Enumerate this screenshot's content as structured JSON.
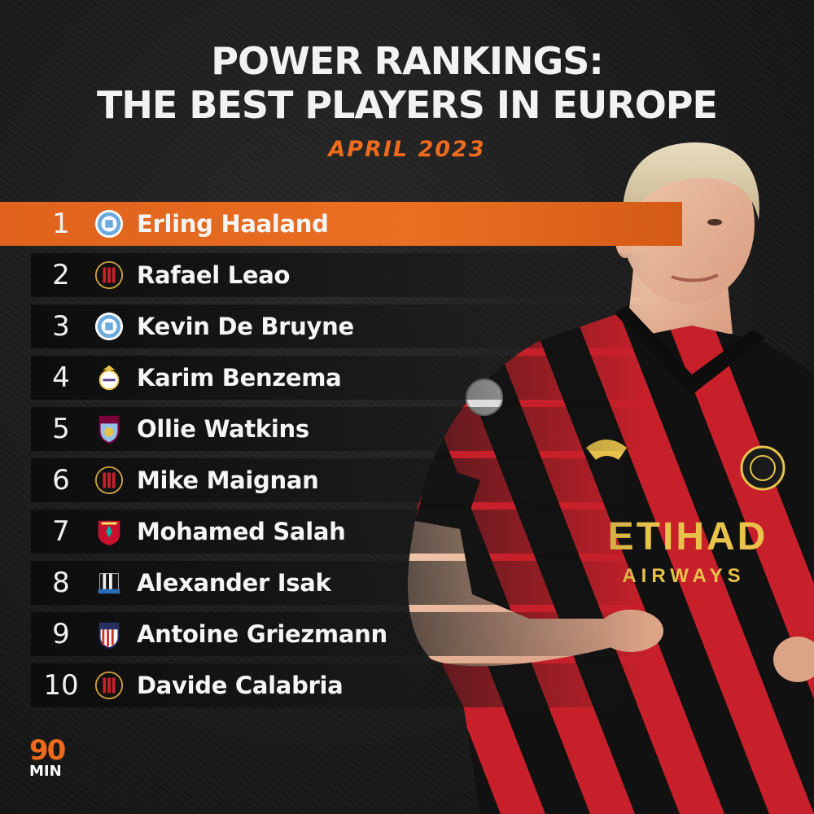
{
  "title": {
    "line1": "POWER RANKINGS:",
    "line2": "THE BEST PLAYERS IN EUROPE"
  },
  "subtitle": "APRIL 2023",
  "rankings": [
    {
      "rank": "1",
      "name": "Erling Haaland",
      "club_icon": "man-city-crest-icon"
    },
    {
      "rank": "2",
      "name": "Rafael Leao",
      "club_icon": "ac-milan-crest-icon"
    },
    {
      "rank": "3",
      "name": "Kevin De Bruyne",
      "club_icon": "man-city-crest-icon"
    },
    {
      "rank": "4",
      "name": "Karim Benzema",
      "club_icon": "real-madrid-crest-icon"
    },
    {
      "rank": "5",
      "name": "Ollie Watkins",
      "club_icon": "aston-villa-crest-icon"
    },
    {
      "rank": "6",
      "name": "Mike Maignan",
      "club_icon": "ac-milan-crest-icon"
    },
    {
      "rank": "7",
      "name": "Mohamed Salah",
      "club_icon": "liverpool-crest-icon"
    },
    {
      "rank": "8",
      "name": "Alexander Isak",
      "club_icon": "newcastle-crest-icon"
    },
    {
      "rank": "9",
      "name": "Antoine Griezmann",
      "club_icon": "atletico-madrid-crest-icon"
    },
    {
      "rank": "10",
      "name": "Davide Calabria",
      "club_icon": "ac-milan-crest-icon"
    }
  ],
  "highlight_color": "#e8681f",
  "accent_color": "#ee6a1c",
  "jersey": {
    "sponsor": "ETIHAD",
    "sponsor_sub": "AIRWAYS"
  },
  "brand_logo": {
    "number": "90",
    "text": "MIN"
  }
}
